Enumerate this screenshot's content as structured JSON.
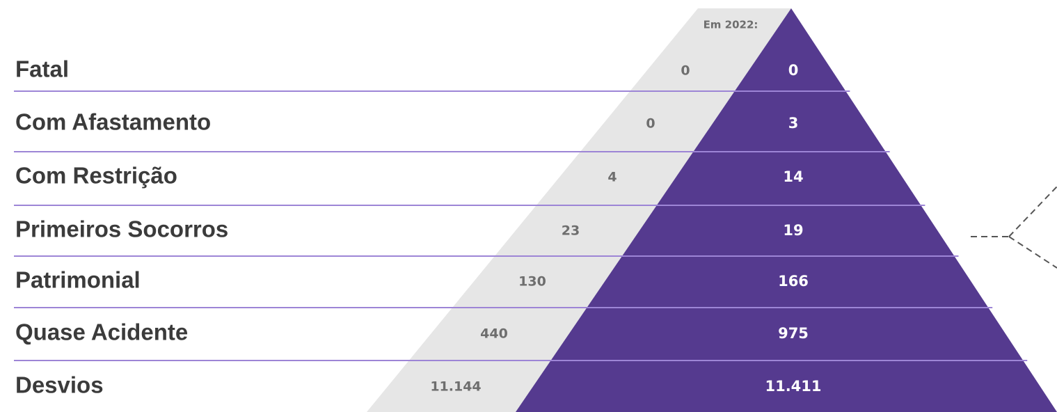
{
  "header": "Em 2022:",
  "rows": [
    {
      "label": "Fatal",
      "previous": "0",
      "current": "0"
    },
    {
      "label": "Com Afastamento",
      "previous": "0",
      "current": "3"
    },
    {
      "label": "Com Restrição",
      "previous": "4",
      "current": "14"
    },
    {
      "label": "Primeiros Socorros",
      "previous": "23",
      "current": "19"
    },
    {
      "label": "Patrimonial",
      "previous": "130",
      "current": "166"
    },
    {
      "label": "Quase Acidente",
      "previous": "440",
      "current": "975"
    },
    {
      "label": "Desvios",
      "previous": "11.144",
      "current": "11.411"
    }
  ]
}
